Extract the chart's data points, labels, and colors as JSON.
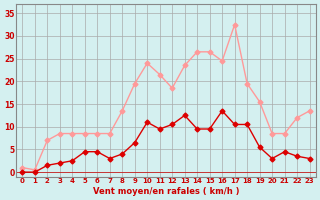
{
  "x": [
    0,
    1,
    2,
    3,
    4,
    5,
    6,
    7,
    8,
    9,
    10,
    11,
    12,
    13,
    14,
    15,
    16,
    17,
    18,
    19,
    20,
    21,
    22,
    23
  ],
  "wind_avg": [
    0,
    0,
    1.5,
    2,
    2.5,
    4.5,
    4.5,
    3,
    4,
    6.5,
    11,
    9.5,
    10.5,
    12.5,
    9.5,
    9.5,
    13.5,
    10.5,
    10.5,
    5.5,
    3,
    4.5,
    3.5,
    3
  ],
  "wind_gust": [
    1,
    0.5,
    7,
    8.5,
    8.5,
    8.5,
    8.5,
    8.5,
    13.5,
    19.5,
    24,
    21.5,
    18.5,
    23.5,
    26.5,
    26.5,
    24.5,
    32.5,
    19.5,
    15.5,
    8.5,
    8.5,
    12,
    13.5
  ],
  "avg_color": "#dd0000",
  "gust_color": "#ff9999",
  "bg_color": "#d4f0f0",
  "grid_color": "#aaaaaa",
  "xlabel": "Vent moyen/en rafales ( km/h )",
  "ylabel_ticks": [
    0,
    5,
    10,
    15,
    20,
    25,
    30,
    35
  ],
  "ylim": [
    -1,
    37
  ],
  "xlim": [
    -0.5,
    23.5
  ]
}
